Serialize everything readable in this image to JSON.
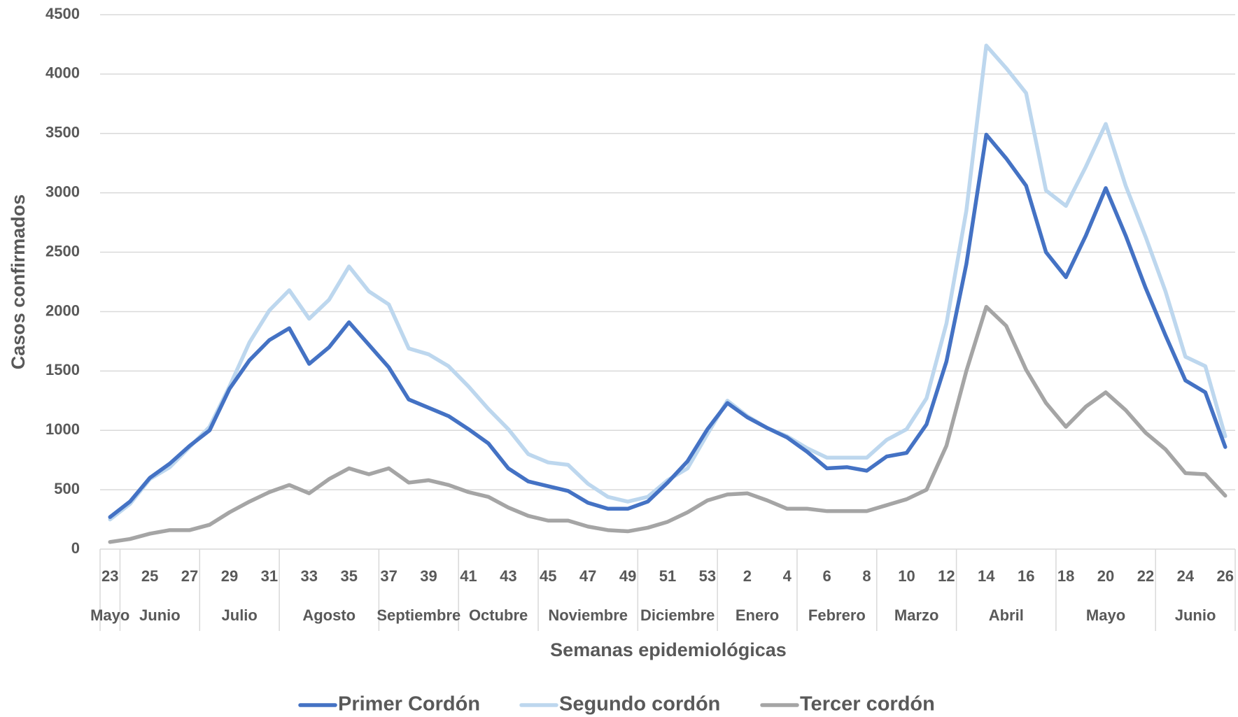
{
  "chart_data": {
    "type": "line",
    "x_label": "Semanas epidemiológicas",
    "y_label": "Casos confirmados",
    "categories": [
      "23",
      null,
      "25",
      null,
      "27",
      null,
      "29",
      null,
      "31",
      null,
      "33",
      null,
      "35",
      null,
      "37",
      null,
      "39",
      null,
      "41",
      null,
      "43",
      null,
      "45",
      null,
      "47",
      null,
      "49",
      null,
      "51",
      null,
      "53",
      null,
      "2",
      null,
      "4",
      null,
      "6",
      null,
      "8",
      null,
      "10",
      null,
      "12",
      null,
      "14",
      null,
      "16",
      null,
      "18",
      null,
      "20",
      null,
      "22",
      null,
      "24",
      null,
      "26"
    ],
    "month_groups": [
      {
        "label": "Mayo",
        "from": 0,
        "to": 0
      },
      {
        "label": "Junio",
        "from": 1,
        "to": 4
      },
      {
        "label": "Julio",
        "from": 5,
        "to": 8
      },
      {
        "label": "Agosto",
        "from": 9,
        "to": 13
      },
      {
        "label": "Septiembre",
        "from": 14,
        "to": 17
      },
      {
        "label": "Octubre",
        "from": 18,
        "to": 21
      },
      {
        "label": "Noviembre",
        "from": 22,
        "to": 26
      },
      {
        "label": "Diciembre",
        "from": 27,
        "to": 30
      },
      {
        "label": "Enero",
        "from": 31,
        "to": 34
      },
      {
        "label": "Febrero",
        "from": 35,
        "to": 38
      },
      {
        "label": "Marzo",
        "from": 39,
        "to": 42
      },
      {
        "label": "Abril",
        "from": 43,
        "to": 47
      },
      {
        "label": "Mayo",
        "from": 48,
        "to": 52
      },
      {
        "label": "Junio",
        "from": 53,
        "to": 56
      }
    ],
    "series": [
      {
        "name": "Primer Cordón",
        "color": "#4472c4",
        "values": [
          270,
          400,
          600,
          720,
          870,
          1000,
          1350,
          1590,
          1760,
          1860,
          1560,
          1700,
          1910,
          1720,
          1530,
          1260,
          1190,
          1120,
          1010,
          890,
          680,
          570,
          530,
          490,
          390,
          340,
          340,
          400,
          560,
          740,
          1010,
          1230,
          1110,
          1020,
          940,
          820,
          680,
          690,
          660,
          780,
          810,
          1050,
          1580,
          2400,
          3490,
          3290,
          3060,
          2500,
          2290,
          2640,
          3040,
          2640,
          2200,
          1800,
          1420,
          1320,
          860
        ]
      },
      {
        "name": "Segundo cordón",
        "color": "#bdd7ee",
        "values": [
          250,
          380,
          590,
          690,
          860,
          1030,
          1370,
          1740,
          2010,
          2180,
          1940,
          2100,
          2380,
          2170,
          2060,
          1690,
          1640,
          1540,
          1370,
          1180,
          1010,
          800,
          730,
          710,
          550,
          440,
          400,
          440,
          580,
          680,
          970,
          1250,
          1120,
          1020,
          950,
          850,
          770,
          770,
          770,
          920,
          1010,
          1270,
          1900,
          2850,
          4240,
          4050,
          3840,
          3020,
          2890,
          3220,
          3580,
          3060,
          2630,
          2170,
          1620,
          1540,
          950
        ]
      },
      {
        "name": "Tercer cordón",
        "color": "#a5a5a5",
        "values": [
          60,
          85,
          130,
          160,
          160,
          205,
          310,
          400,
          480,
          540,
          470,
          590,
          680,
          630,
          680,
          560,
          580,
          540,
          480,
          440,
          350,
          280,
          240,
          240,
          190,
          160,
          150,
          180,
          230,
          310,
          410,
          460,
          470,
          410,
          340,
          340,
          320,
          320,
          320,
          370,
          420,
          500,
          870,
          1500,
          2040,
          1880,
          1510,
          1230,
          1030,
          1200,
          1320,
          1170,
          980,
          840,
          640,
          630,
          450
        ]
      }
    ],
    "ylim": [
      0,
      4500
    ],
    "yticks": [
      0,
      500,
      1000,
      1500,
      2000,
      2500,
      3000,
      3500,
      4000,
      4500
    ],
    "grid": true,
    "legend": "bottom"
  }
}
